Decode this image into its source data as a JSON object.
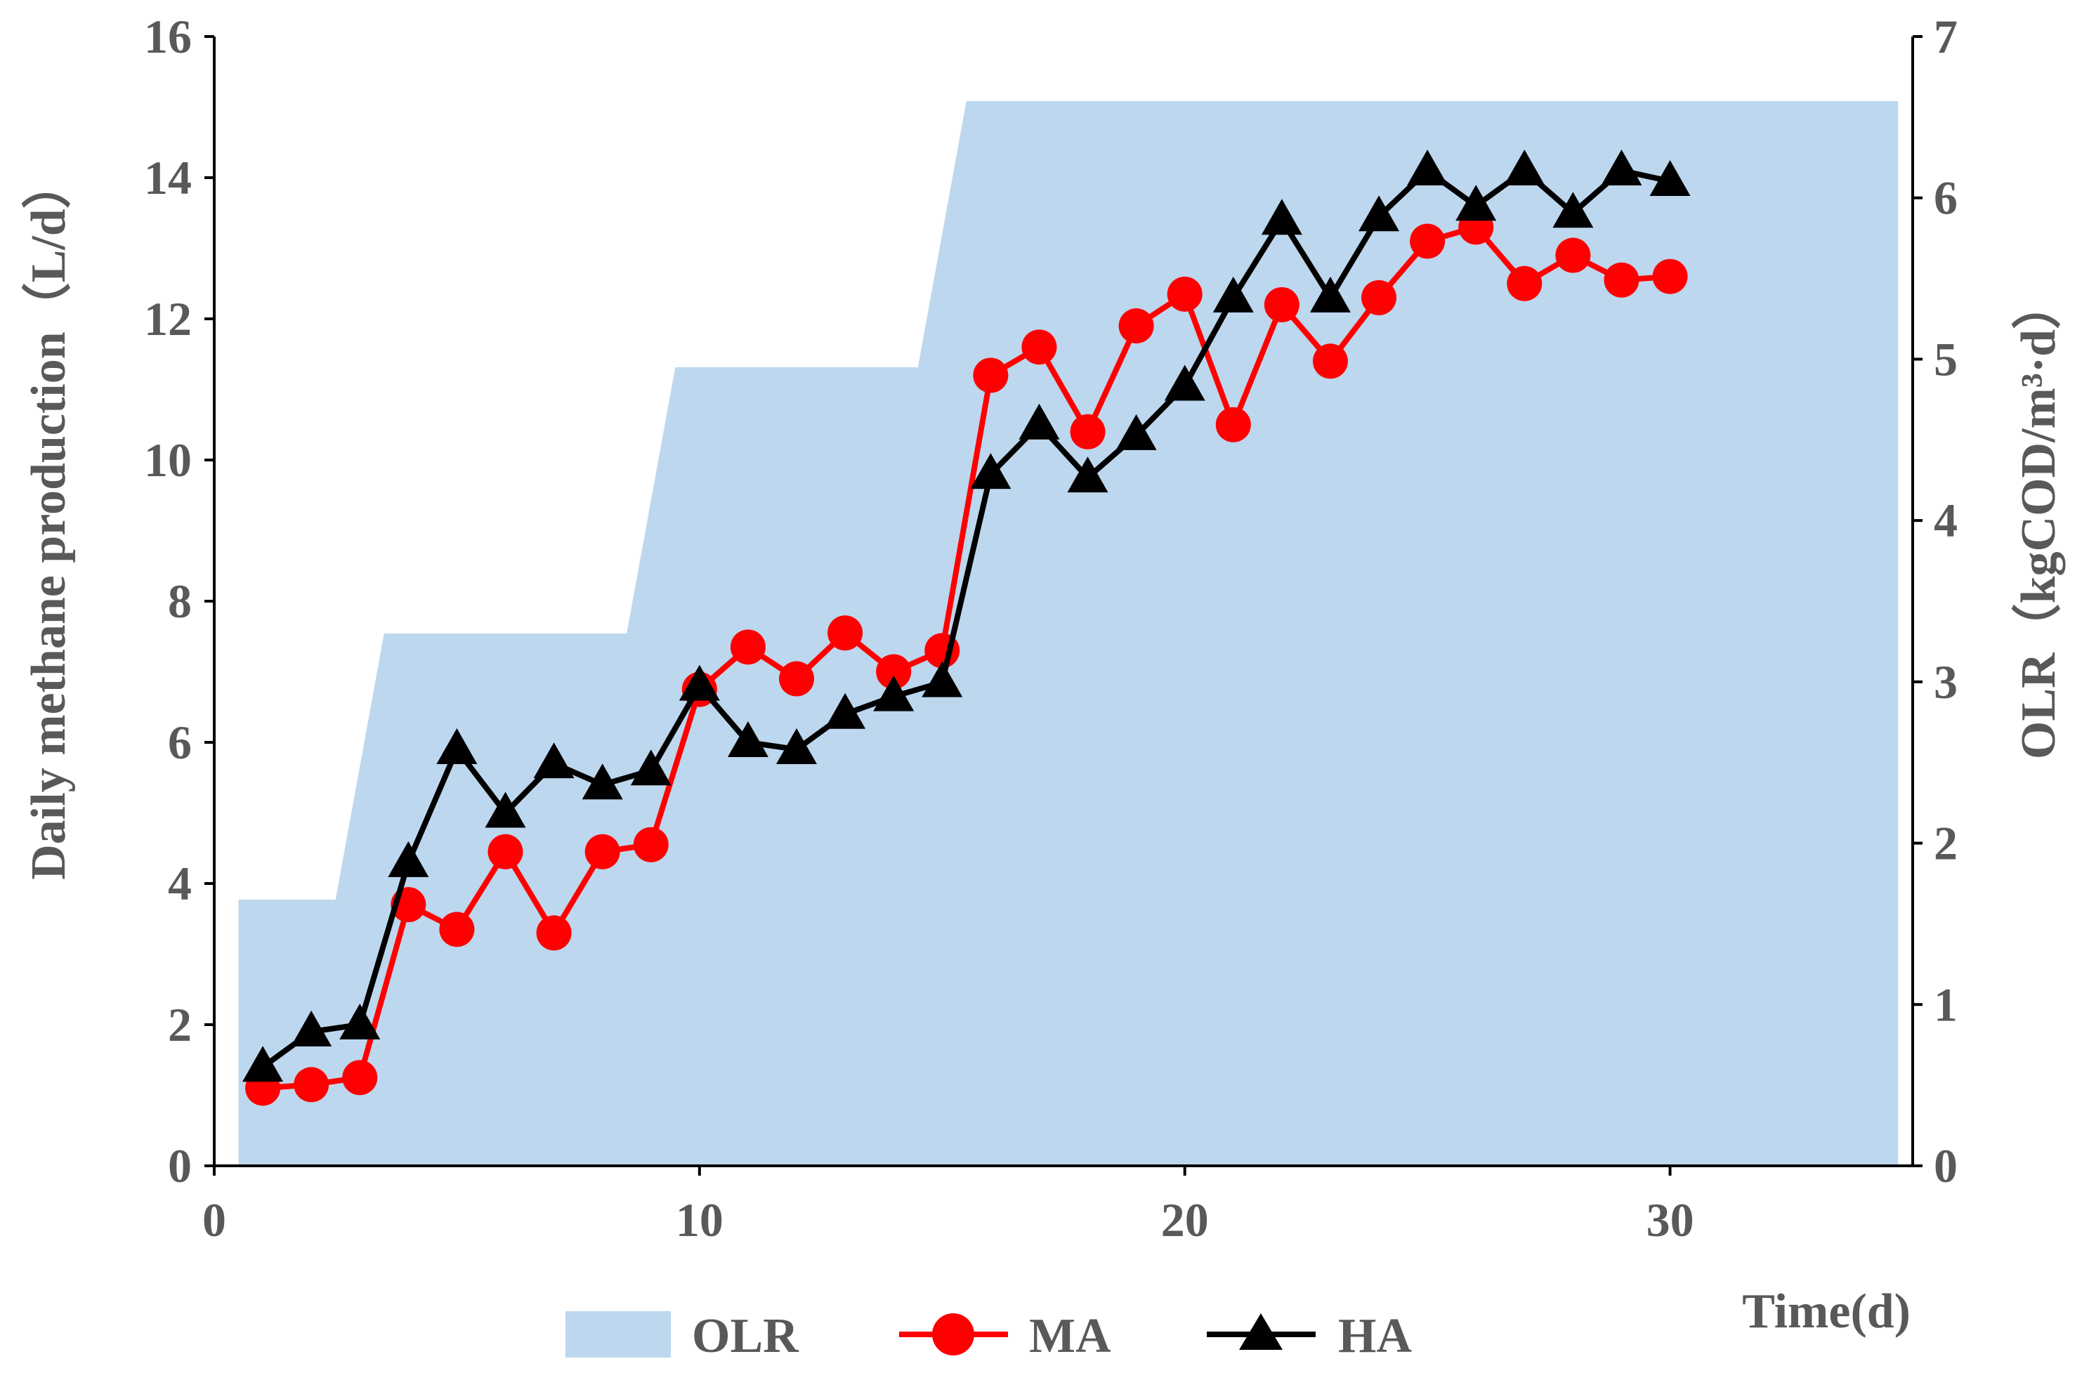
{
  "chart_data": {
    "type": "line",
    "xlabel": "Time(d)",
    "ylabel": "Daily methane production（L/d）",
    "y2label": "OLR（kgCOD/m³·d）",
    "xlim": [
      0,
      35
    ],
    "ylim": [
      0,
      16
    ],
    "y2lim": [
      0,
      7
    ],
    "xticks": [
      "0",
      "10",
      "20",
      "30"
    ],
    "yticks": [
      "0",
      "2",
      "4",
      "6",
      "8",
      "10",
      "12",
      "14",
      "16"
    ],
    "y2ticks": [
      "0",
      "1",
      "2",
      "3",
      "4",
      "5",
      "6",
      "7"
    ],
    "grid": false,
    "legend_position": "bottom",
    "olr": {
      "name": "OLR",
      "color": "#bdd7ee",
      "axis": "right",
      "x": [
        0.5,
        2.5,
        3.5,
        8.5,
        9.5,
        14.5,
        15.5,
        34.7
      ],
      "values": [
        1.65,
        1.65,
        3.3,
        3.3,
        4.95,
        4.95,
        6.6,
        6.6
      ]
    },
    "series": [
      {
        "name": "MA",
        "color": "#ff0000",
        "marker": "circle",
        "x": [
          1,
          2,
          3,
          4,
          5,
          6,
          7,
          8,
          9,
          10,
          11,
          12,
          13,
          14,
          15,
          16,
          17,
          18,
          19,
          20,
          21,
          22,
          23,
          24,
          25,
          26,
          27,
          28,
          29,
          30
        ],
        "values": [
          1.1,
          1.15,
          1.25,
          3.7,
          3.35,
          4.45,
          3.3,
          4.45,
          4.55,
          6.75,
          7.35,
          6.9,
          7.55,
          7.0,
          7.3,
          11.2,
          11.6,
          10.4,
          11.9,
          12.35,
          10.5,
          12.2,
          11.4,
          12.3,
          13.1,
          13.3,
          12.5,
          12.9,
          12.55,
          12.6
        ]
      },
      {
        "name": "HA",
        "color": "#000000",
        "marker": "triangle",
        "x": [
          1,
          2,
          3,
          4,
          5,
          6,
          7,
          8,
          9,
          10,
          11,
          12,
          13,
          14,
          15,
          16,
          17,
          18,
          19,
          20,
          21,
          22,
          23,
          24,
          25,
          26,
          27,
          28,
          29,
          30
        ],
        "values": [
          1.4,
          1.9,
          2.0,
          4.3,
          5.9,
          5.0,
          5.7,
          5.4,
          5.6,
          6.8,
          6.0,
          5.9,
          6.4,
          6.65,
          6.85,
          9.8,
          10.5,
          9.75,
          10.35,
          11.05,
          12.3,
          13.4,
          12.3,
          13.45,
          14.1,
          13.6,
          14.1,
          13.5,
          14.1,
          13.95
        ]
      }
    ]
  }
}
